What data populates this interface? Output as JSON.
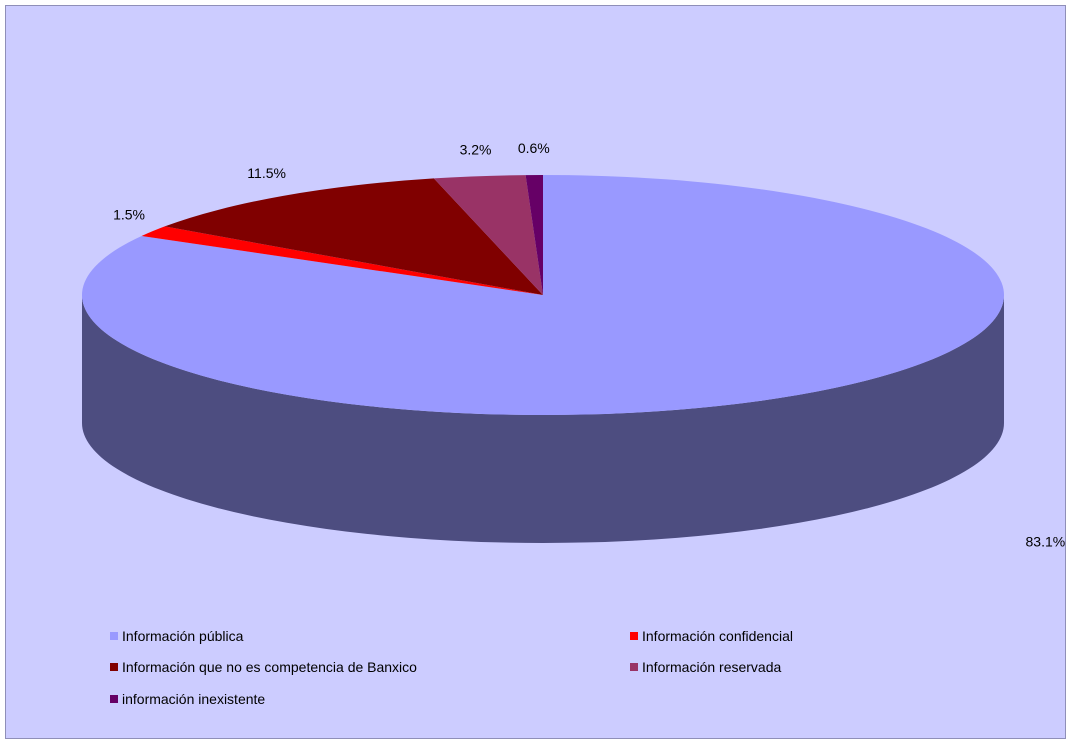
{
  "chart_data": {
    "type": "pie",
    "style": "3d",
    "categories": [
      "Información pública",
      "Información confidencial",
      "Información que no es competencia de Banxico",
      "Información reservada",
      "información inexistente"
    ],
    "values": [
      83.1,
      1.5,
      11.5,
      3.2,
      0.6
    ],
    "data_labels": [
      "83.1%",
      "1.5%",
      "11.5%",
      "3.2%",
      "0.6%"
    ],
    "colors": [
      "#9999ff",
      "#ff0000",
      "#800000",
      "#993366",
      "#660066"
    ],
    "legend": "bottom",
    "title": ""
  }
}
